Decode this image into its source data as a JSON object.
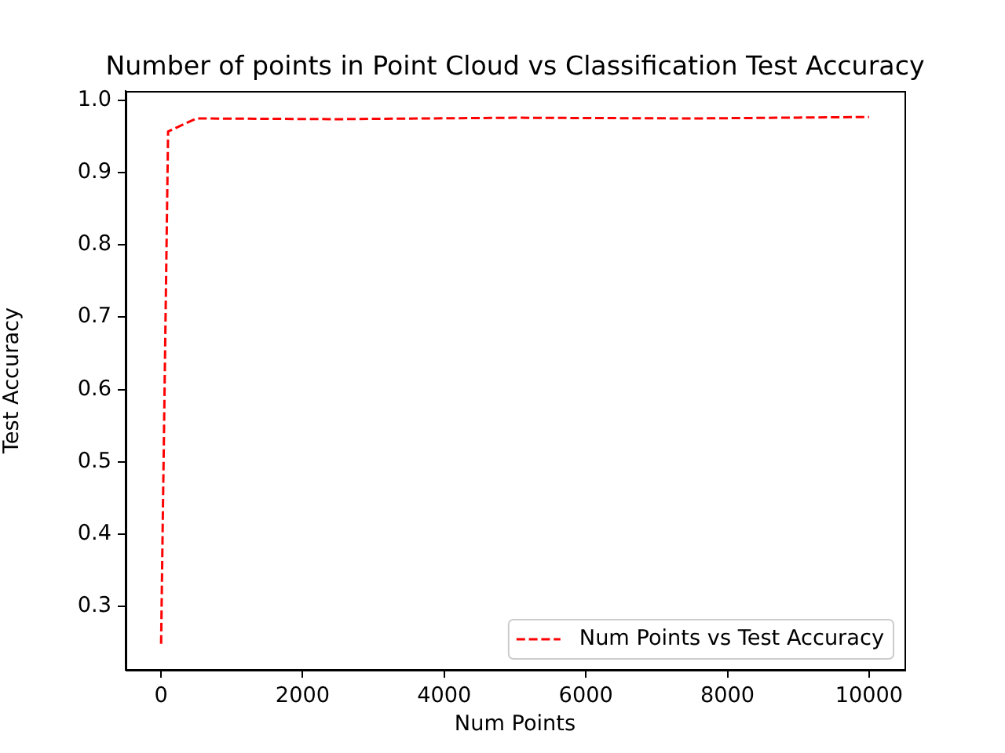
{
  "chart_data": {
    "type": "line",
    "title": "Number of points in Point Cloud vs Classification Test Accuracy",
    "xlabel": "Num Points",
    "ylabel": "Test Accuracy",
    "x": [
      1,
      100,
      500,
      2500,
      5000,
      7500,
      10000
    ],
    "series": [
      {
        "name": "Num Points vs Test Accuracy",
        "color": "#ff0000",
        "values": [
          0.248,
          0.957,
          0.975,
          0.974,
          0.976,
          0.975,
          0.977
        ]
      }
    ],
    "xlim": [
      -500,
      10500
    ],
    "xticks": [
      0,
      2000,
      4000,
      6000,
      8000,
      10000
    ],
    "ylim": [
      0.212,
      1.013
    ],
    "yticks": [
      0.3,
      0.4,
      0.5,
      0.6,
      0.7,
      0.8,
      0.9,
      {
        "value": 1,
        "label": "1.0"
      }
    ],
    "grid": false,
    "legend": "bottom right",
    "line_style": "dashed"
  }
}
